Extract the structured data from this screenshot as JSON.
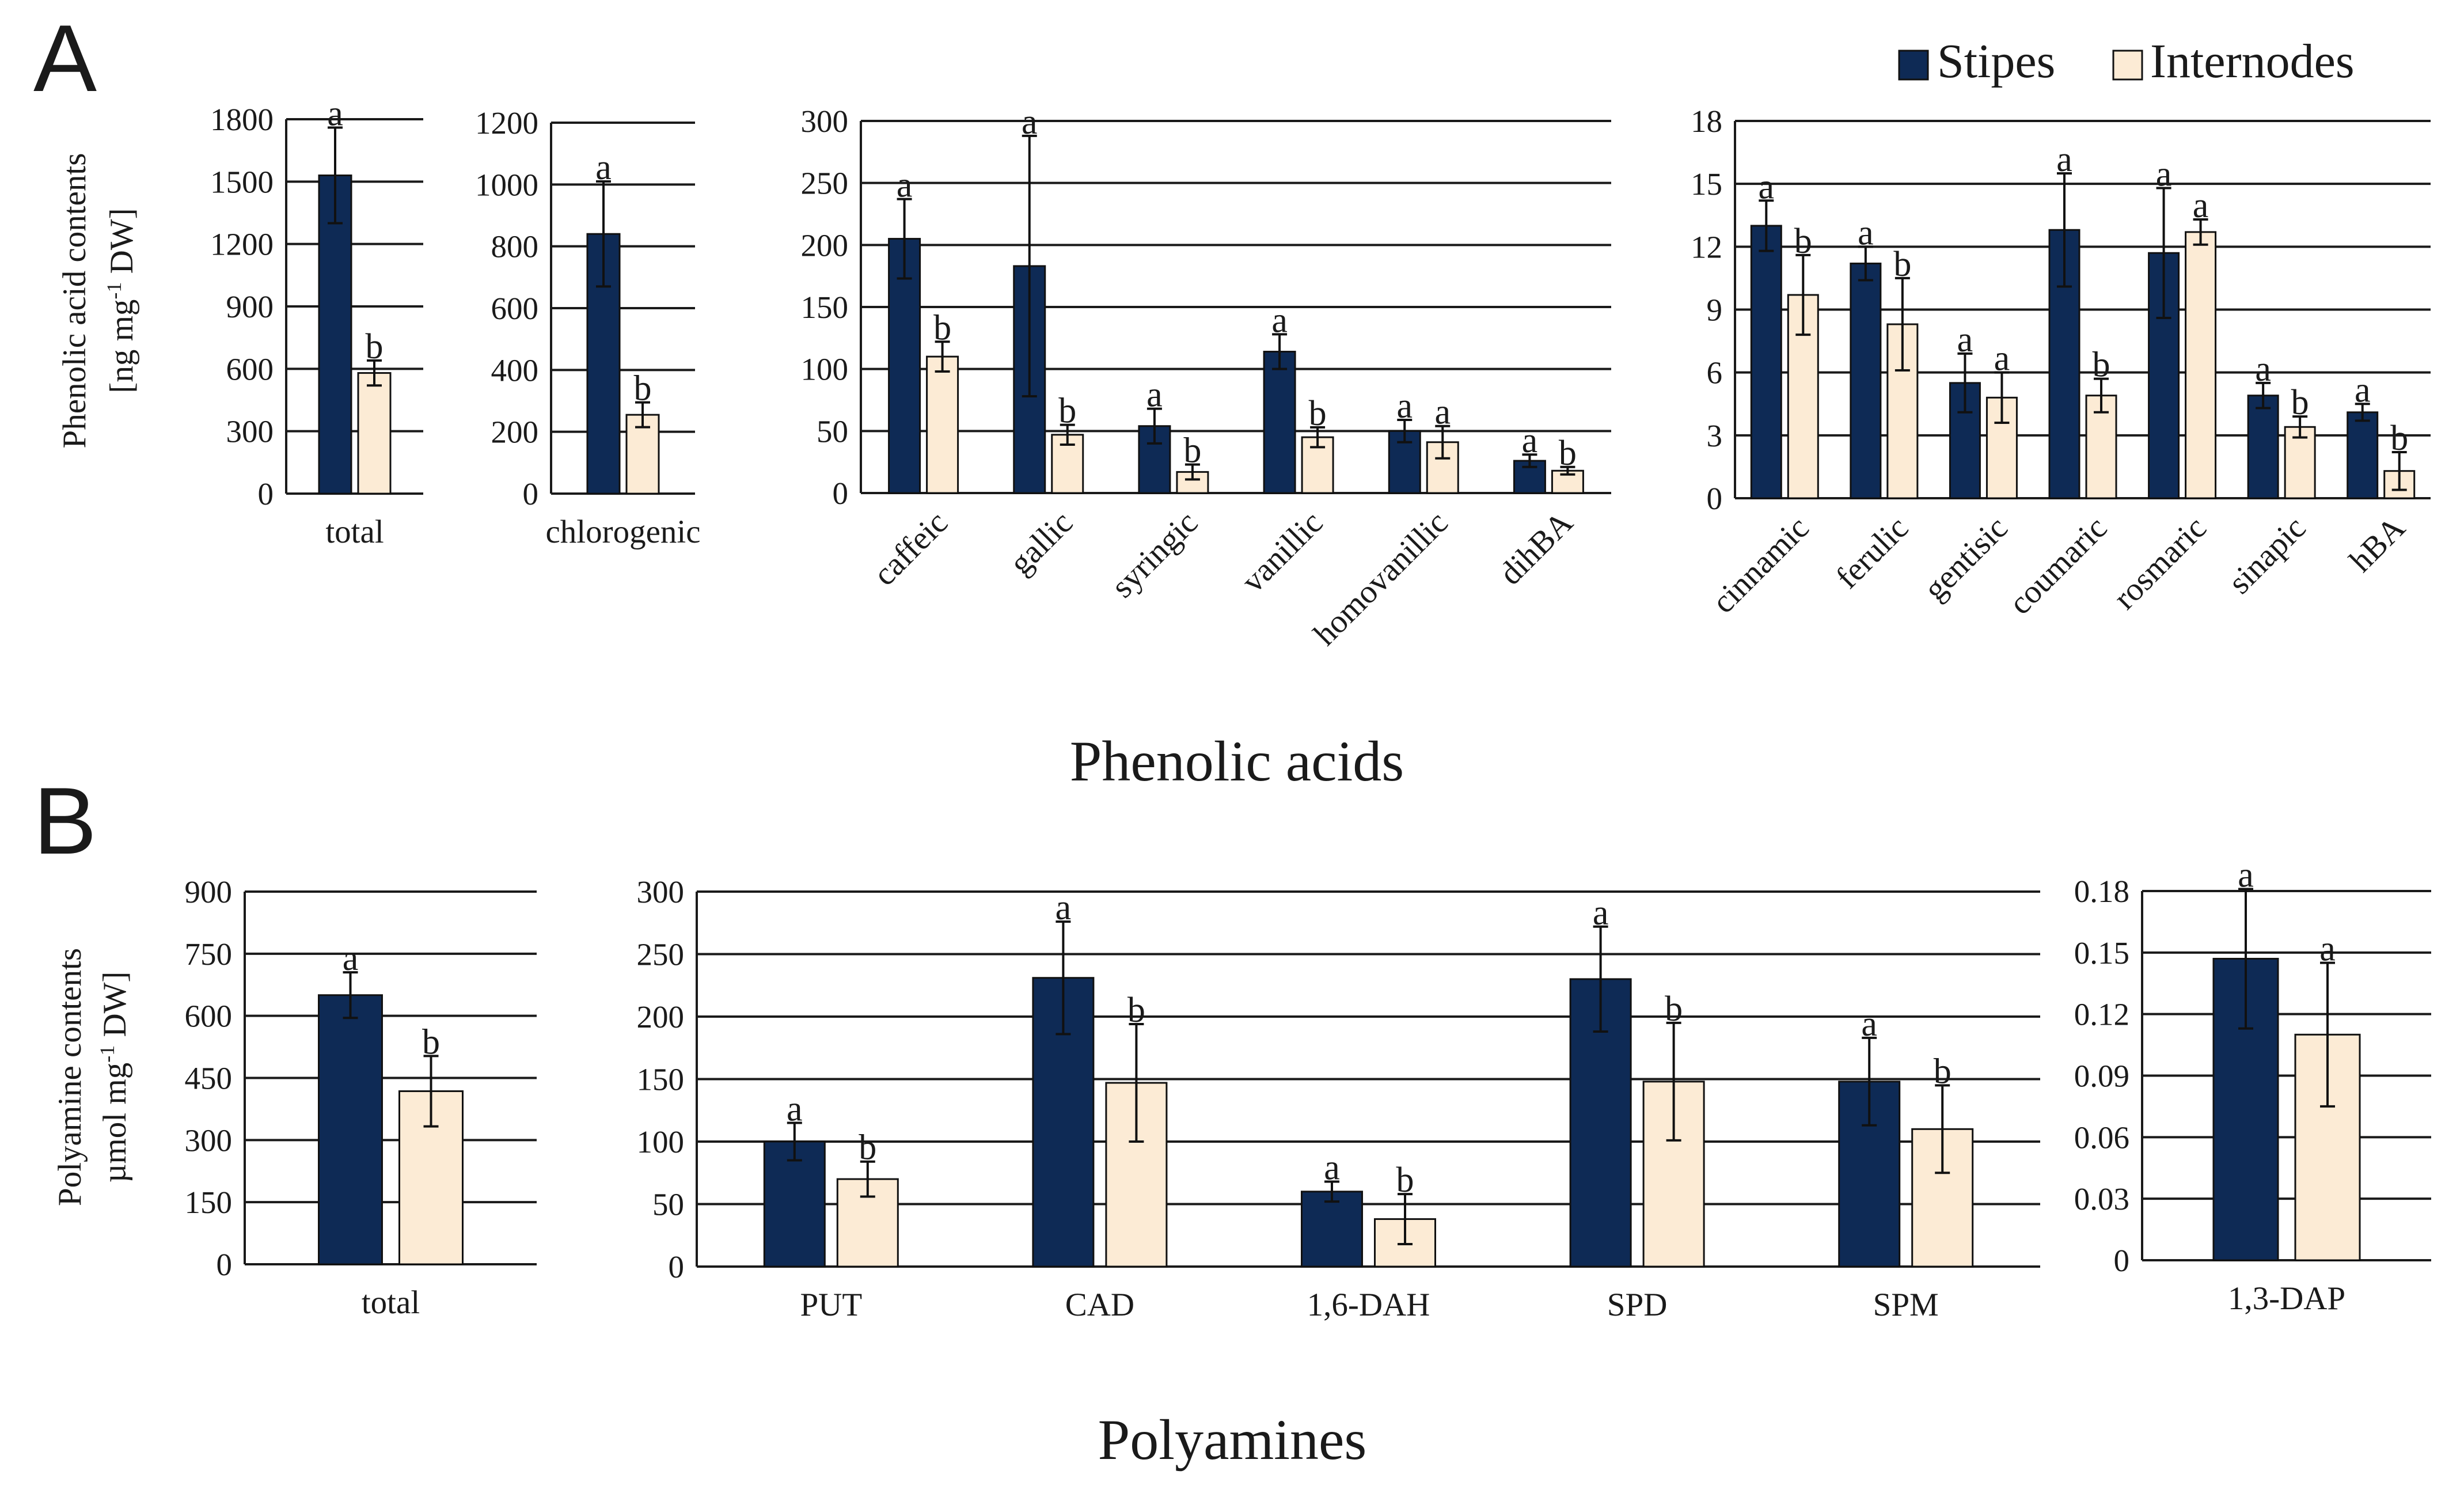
{
  "colors": {
    "stipes": "#0e2a55",
    "internodes": "#fcebd5"
  },
  "legend": {
    "stipes": "Stipes",
    "internodes": "Internodes"
  },
  "panel_a": {
    "letter": "A",
    "title": "Phenolic acids",
    "ylabel_line1": "Phenolic acid contents",
    "ylabel_line2": "[ng mg",
    "ylabel_sup": "-1",
    "ylabel_line2_end": " DW]"
  },
  "panel_b": {
    "letter": "B",
    "title": "Polyamines",
    "ylabel_line1": "Polyamine contents",
    "ylabel_line2": "µmol mg",
    "ylabel_sup": "-1",
    "ylabel_line2_end": " DW]"
  },
  "chart_data": [
    {
      "type": "bar",
      "id": "a-total",
      "ylim": [
        0,
        1800
      ],
      "yticks": [
        "0",
        "300",
        "600",
        "900",
        "1200",
        "1500",
        "1800"
      ],
      "categories": [
        "total"
      ],
      "series": [
        {
          "name": "Stipes",
          "values": [
            1530
          ],
          "errors": [
            230
          ],
          "letters": [
            "a"
          ]
        },
        {
          "name": "Internodes",
          "values": [
            580
          ],
          "errors": [
            60
          ],
          "letters": [
            "b"
          ]
        }
      ]
    },
    {
      "type": "bar",
      "id": "a-chlorogenic",
      "ylim": [
        0,
        1200
      ],
      "yticks": [
        "0",
        "200",
        "400",
        "600",
        "800",
        "1000",
        "1200"
      ],
      "categories": [
        "chlorogenic"
      ],
      "series": [
        {
          "name": "Stipes",
          "values": [
            840
          ],
          "errors": [
            170
          ],
          "letters": [
            "a"
          ]
        },
        {
          "name": "Internodes",
          "values": [
            255
          ],
          "errors": [
            40
          ],
          "letters": [
            "b"
          ]
        }
      ]
    },
    {
      "type": "bar",
      "id": "a-phenolics-1",
      "ylim": [
        0,
        300
      ],
      "yticks": [
        "0",
        "50",
        "100",
        "150",
        "200",
        "250",
        "300"
      ],
      "categories": [
        "caffeic",
        "gallic",
        "syringic",
        "vanillic",
        "homovanillic",
        "dihBA"
      ],
      "series": [
        {
          "name": "Stipes",
          "values": [
            205,
            183,
            54,
            114,
            50,
            26
          ],
          "errors": [
            32,
            105,
            14,
            14,
            9,
            5
          ],
          "letters": [
            "a",
            "a",
            "a",
            "a",
            "a",
            "a"
          ]
        },
        {
          "name": "Internodes",
          "values": [
            110,
            47,
            17,
            45,
            41,
            18
          ],
          "errors": [
            12,
            8,
            6,
            8,
            13,
            3
          ],
          "letters": [
            "b",
            "b",
            "b",
            "b",
            "a",
            "b"
          ]
        }
      ]
    },
    {
      "type": "bar",
      "id": "a-phenolics-2",
      "ylim": [
        0,
        18
      ],
      "yticks": [
        "0",
        "3",
        "6",
        "9",
        "12",
        "15",
        "18"
      ],
      "categories": [
        "cinnamic",
        "ferulic",
        "gentisic",
        "coumaric",
        "rosmaric",
        "sinapic",
        "hBA"
      ],
      "series": [
        {
          "name": "Stipes",
          "values": [
            13.0,
            11.2,
            5.5,
            12.8,
            11.7,
            4.9,
            4.1
          ],
          "errors": [
            1.2,
            0.8,
            1.4,
            2.7,
            3.1,
            0.6,
            0.4
          ],
          "letters": [
            "a",
            "a",
            "a",
            "a",
            "a",
            "a",
            "a"
          ]
        },
        {
          "name": "Internodes",
          "values": [
            9.7,
            8.3,
            4.8,
            4.9,
            12.7,
            3.4,
            1.3
          ],
          "errors": [
            1.9,
            2.2,
            1.2,
            0.8,
            0.6,
            0.5,
            0.9
          ],
          "letters": [
            "b",
            "b",
            "a",
            "b",
            "a",
            "b",
            "b"
          ]
        }
      ]
    },
    {
      "type": "bar",
      "id": "b-total",
      "ylim": [
        0,
        900
      ],
      "yticks": [
        "0",
        "150",
        "300",
        "450",
        "600",
        "750",
        "900"
      ],
      "categories": [
        "total"
      ],
      "series": [
        {
          "name": "Stipes",
          "values": [
            650
          ],
          "errors": [
            55
          ],
          "letters": [
            "a"
          ]
        },
        {
          "name": "Internodes",
          "values": [
            418
          ],
          "errors": [
            85
          ],
          "letters": [
            "b"
          ]
        }
      ]
    },
    {
      "type": "bar",
      "id": "b-polyamines",
      "ylim": [
        0,
        300
      ],
      "yticks": [
        "0",
        "50",
        "100",
        "150",
        "200",
        "250",
        "300"
      ],
      "categories": [
        "PUT",
        "CAD",
        "1,6-DAH",
        "SPD",
        "SPM"
      ],
      "series": [
        {
          "name": "Stipes",
          "values": [
            100,
            231,
            60,
            230,
            148
          ],
          "errors": [
            15,
            45,
            8,
            42,
            35
          ],
          "letters": [
            "a",
            "a",
            "a",
            "a",
            "a"
          ]
        },
        {
          "name": "Internodes",
          "values": [
            70,
            147,
            38,
            148,
            110
          ],
          "errors": [
            14,
            47,
            20,
            47,
            35
          ],
          "letters": [
            "b",
            "b",
            "b",
            "b",
            "b"
          ]
        }
      ]
    },
    {
      "type": "bar",
      "id": "b-dap",
      "ylim": [
        0,
        0.18
      ],
      "yticks": [
        "0",
        "0.03",
        "0.06",
        "0.09",
        "0.12",
        "0.15",
        "0.18"
      ],
      "categories": [
        "1,3-DAP"
      ],
      "series": [
        {
          "name": "Stipes",
          "values": [
            0.147
          ],
          "errors": [
            0.034
          ],
          "letters": [
            "a"
          ]
        },
        {
          "name": "Internodes",
          "values": [
            0.11
          ],
          "errors": [
            0.035
          ],
          "letters": [
            "a"
          ]
        }
      ]
    }
  ]
}
